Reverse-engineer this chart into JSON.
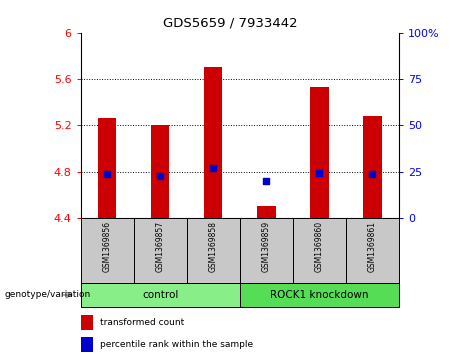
{
  "title": "GDS5659 / 7933442",
  "samples": [
    "GSM1369856",
    "GSM1369857",
    "GSM1369858",
    "GSM1369859",
    "GSM1369860",
    "GSM1369861"
  ],
  "bar_values": [
    5.26,
    5.2,
    5.7,
    4.5,
    5.53,
    5.28
  ],
  "dot_values": [
    4.775,
    4.76,
    4.83,
    4.72,
    4.785,
    4.775
  ],
  "ymin": 4.4,
  "ymax": 6.0,
  "yticks_left": [
    4.4,
    4.8,
    5.2,
    5.6,
    6.0
  ],
  "ytick_labels_left": [
    "4.4",
    "4.8",
    "5.2",
    "5.6",
    "6"
  ],
  "yticks_right": [
    0,
    25,
    50,
    75,
    100
  ],
  "ytick_labels_right": [
    "0",
    "25",
    "50",
    "75",
    "100%"
  ],
  "bar_color": "#cc0000",
  "dot_color": "#0000cc",
  "bar_width": 0.35,
  "groups": [
    {
      "label": "control",
      "indices": [
        0,
        1,
        2
      ],
      "color": "#88ee88"
    },
    {
      "label": "ROCK1 knockdown",
      "indices": [
        3,
        4,
        5
      ],
      "color": "#55dd55"
    }
  ],
  "legend_items": [
    {
      "label": "transformed count",
      "color": "#cc0000"
    },
    {
      "label": "percentile rank within the sample",
      "color": "#0000cc"
    }
  ],
  "sample_bg_color": "#c8c8c8",
  "hgrid_at": [
    4.8,
    5.2,
    5.6
  ]
}
